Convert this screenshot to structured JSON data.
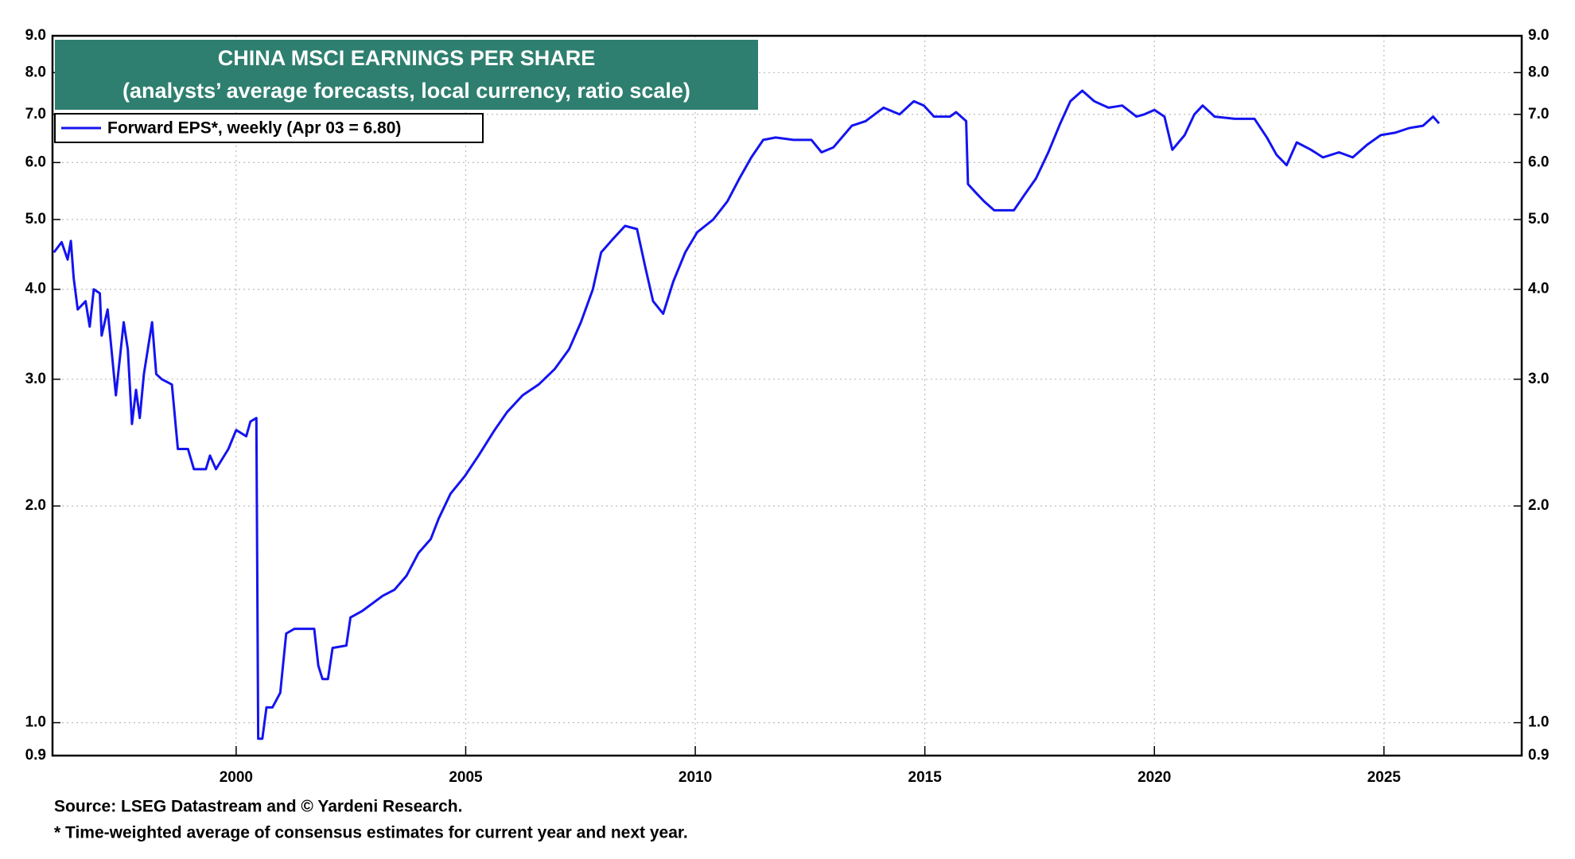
{
  "chart_data": {
    "type": "line",
    "title": "CHINA MSCI EARNINGS PER SHARE",
    "subtitle": "(analysts’ average forecasts, local currency, ratio scale)",
    "source": "Source: LSEG Datastream and © Yardeni Research.",
    "note": "* Time-weighted average of consensus estimates for current year and next year.",
    "log_scale": true,
    "grid": true,
    "legend": "upper-left",
    "xlim": [
      1996,
      2028
    ],
    "xticks": [
      2000,
      2005,
      2010,
      2015,
      2020,
      2025
    ],
    "ylim": [
      0.9,
      9.0
    ],
    "yticks": [
      {
        "value": 0.9,
        "label": "0.9"
      },
      {
        "value": 1,
        "label": "1.0"
      },
      {
        "value": 2,
        "label": "2.0"
      },
      {
        "value": 3,
        "label": "3.0"
      },
      {
        "value": 4,
        "label": "4.0"
      },
      {
        "value": 5,
        "label": "5.0"
      },
      {
        "value": 6,
        "label": "6.0"
      },
      {
        "value": 7,
        "label": "7.0"
      },
      {
        "value": 8,
        "label": "8.0"
      },
      {
        "value": 9,
        "label": "9.0"
      }
    ],
    "x": [
      1996.03,
      1996.2,
      1996.33,
      1996.4,
      1996.46,
      1996.55,
      1996.72,
      1996.81,
      1996.9,
      1997.03,
      1997.07,
      1997.2,
      1997.38,
      1997.55,
      1997.64,
      1997.73,
      1997.82,
      1997.9,
      1997.99,
      1998.17,
      1998.26,
      1998.38,
      1998.6,
      1998.73,
      1998.95,
      1999.08,
      1999.34,
      1999.43,
      1999.56,
      1999.83,
      2000.0,
      2000.22,
      2000.31,
      2000.44,
      2000.48,
      2000.57,
      2000.66,
      2000.79,
      2000.96,
      2001.09,
      2001.27,
      2001.7,
      2001.79,
      2001.88,
      2002.0,
      2002.1,
      2002.4,
      2002.49,
      2002.75,
      2003.19,
      2003.45,
      2003.71,
      2003.97,
      2004.24,
      2004.41,
      2004.67,
      2004.98,
      2005.28,
      2005.63,
      2005.9,
      2006.24,
      2006.59,
      2006.94,
      2007.25,
      2007.51,
      2007.77,
      2007.95,
      2008.21,
      2008.47,
      2008.73,
      2008.91,
      2009.08,
      2009.3,
      2009.52,
      2009.78,
      2010.04,
      2010.39,
      2010.7,
      2010.96,
      2011.22,
      2011.48,
      2011.75,
      2012.14,
      2012.53,
      2012.75,
      2013.01,
      2013.41,
      2013.71,
      2014.1,
      2014.45,
      2014.76,
      2014.98,
      2015.2,
      2015.55,
      2015.68,
      2015.9,
      2015.94,
      2016.11,
      2016.29,
      2016.51,
      2016.94,
      2017.16,
      2017.42,
      2017.69,
      2017.95,
      2018.17,
      2018.43,
      2018.69,
      2019.0,
      2019.3,
      2019.61,
      2019.78,
      2020.0,
      2020.22,
      2020.39,
      2020.66,
      2020.87,
      2021.05,
      2021.31,
      2021.75,
      2022.18,
      2022.45,
      2022.66,
      2022.88,
      2023.1,
      2023.41,
      2023.67,
      2024.02,
      2024.32,
      2024.63,
      2024.93,
      2025.24,
      2025.55,
      2025.85,
      2026.07,
      2026.2
    ],
    "series": [
      {
        "name": "Forward EPS*, weekly (Apr 03 = 6.80)",
        "color": "#1414f0",
        "values": [
          4.5,
          4.65,
          4.4,
          4.67,
          4.15,
          3.75,
          3.85,
          3.55,
          4.0,
          3.95,
          3.45,
          3.75,
          2.85,
          3.6,
          3.3,
          2.6,
          2.9,
          2.65,
          3.05,
          3.6,
          3.05,
          3.0,
          2.95,
          2.4,
          2.4,
          2.25,
          2.25,
          2.35,
          2.25,
          2.4,
          2.55,
          2.5,
          2.62,
          2.65,
          0.95,
          0.95,
          1.05,
          1.05,
          1.1,
          1.33,
          1.35,
          1.35,
          1.2,
          1.15,
          1.15,
          1.27,
          1.28,
          1.4,
          1.43,
          1.5,
          1.53,
          1.6,
          1.72,
          1.8,
          1.92,
          2.08,
          2.2,
          2.35,
          2.55,
          2.7,
          2.85,
          2.95,
          3.1,
          3.3,
          3.6,
          4.0,
          4.5,
          4.7,
          4.9,
          4.85,
          4.3,
          3.85,
          3.7,
          4.1,
          4.5,
          4.8,
          5.0,
          5.3,
          5.7,
          6.1,
          6.45,
          6.5,
          6.45,
          6.45,
          6.2,
          6.3,
          6.75,
          6.85,
          7.15,
          7.0,
          7.3,
          7.2,
          6.95,
          6.95,
          7.05,
          6.85,
          5.6,
          5.45,
          5.3,
          5.15,
          5.15,
          5.4,
          5.7,
          6.2,
          6.8,
          7.3,
          7.55,
          7.3,
          7.15,
          7.2,
          6.95,
          7.0,
          7.1,
          6.95,
          6.25,
          6.55,
          7.0,
          7.2,
          6.95,
          6.9,
          6.9,
          6.5,
          6.15,
          5.95,
          6.4,
          6.25,
          6.1,
          6.2,
          6.1,
          6.35,
          6.55,
          6.6,
          6.7,
          6.75,
          6.95,
          6.8
        ]
      }
    ]
  }
}
